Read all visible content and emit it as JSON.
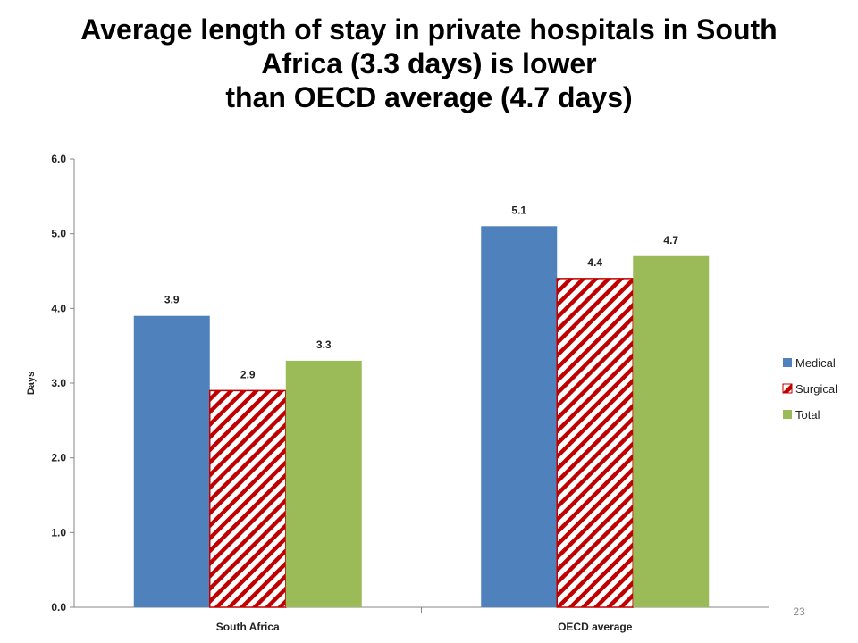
{
  "slide": {
    "title_lines": [
      "Average length of stay in private hospitals in South",
      "Africa (3.3 days) is lower",
      "than OECD average (4.7 days)"
    ],
    "page_number": "23"
  },
  "chart_data": {
    "type": "bar",
    "categories": [
      "South Africa",
      "OECD average"
    ],
    "series": [
      {
        "name": "Medical",
        "values": [
          3.9,
          5.1
        ],
        "color": "#4f81bd",
        "pattern": "solid"
      },
      {
        "name": "Surgical",
        "values": [
          2.9,
          4.4
        ],
        "color": "#c00000",
        "pattern": "diagonal-stripes"
      },
      {
        "name": "Total",
        "values": [
          3.3,
          4.7
        ],
        "color": "#9bbb59",
        "pattern": "solid"
      }
    ],
    "ylabel": "Days",
    "xlabel": "",
    "ylim": [
      0,
      6
    ],
    "yticks": [
      "0.0",
      "1.0",
      "2.0",
      "3.0",
      "4.0",
      "5.0",
      "6.0"
    ],
    "data_labels": [
      [
        "3.9",
        "5.1"
      ],
      [
        "2.9",
        "4.4"
      ],
      [
        "3.3",
        "4.7"
      ]
    ],
    "grid": false,
    "legend_position": "right"
  }
}
